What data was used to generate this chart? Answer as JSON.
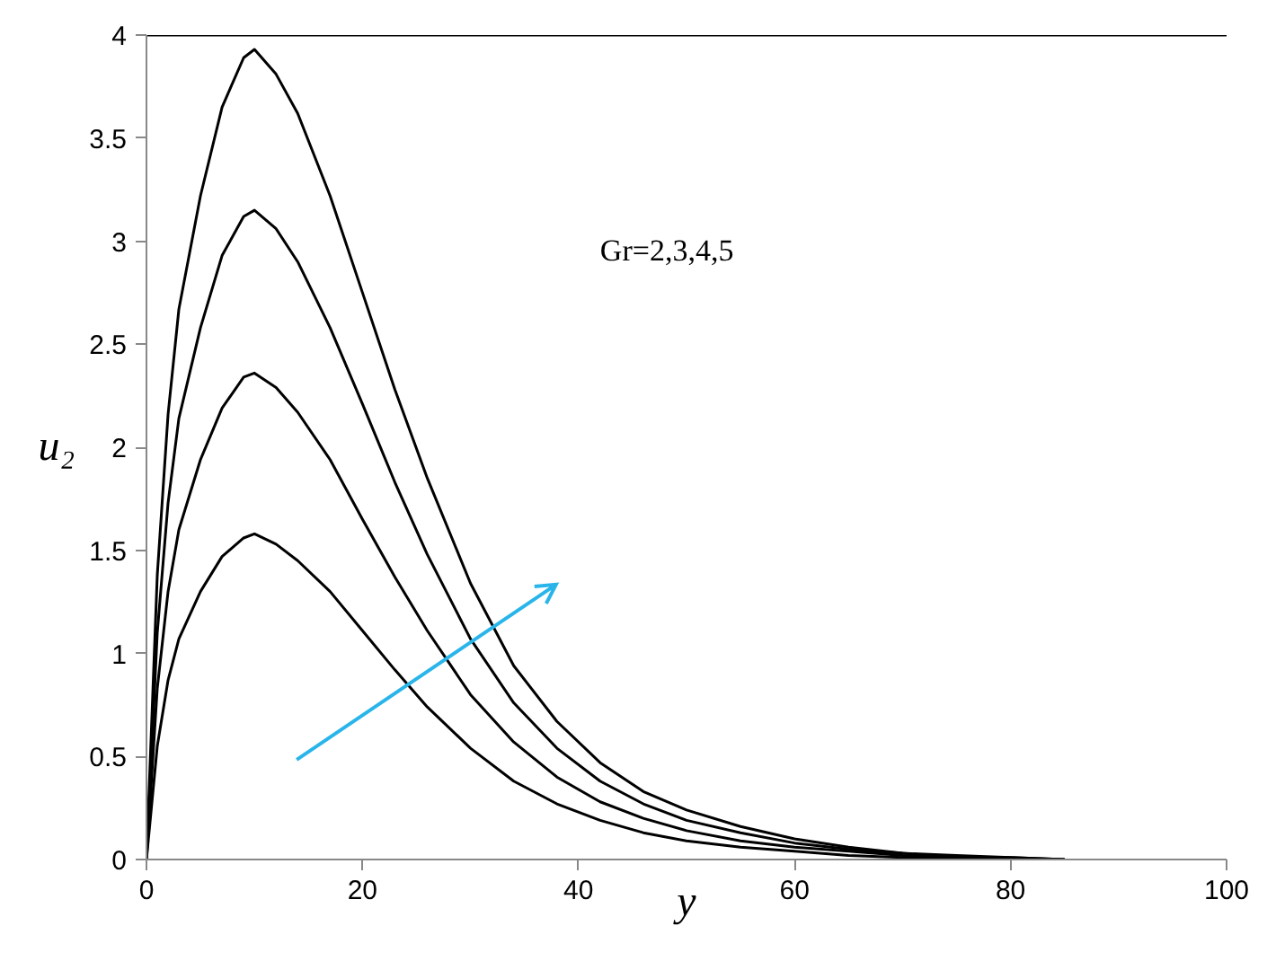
{
  "chart_data": {
    "type": "line",
    "xlabel": "y",
    "ylabel": "u₂",
    "annotations": [
      "Gr=2,3,4,5"
    ],
    "x": [
      0,
      1,
      2,
      3,
      5,
      7,
      9,
      10,
      12,
      14,
      17,
      20,
      23,
      26,
      30,
      34,
      38,
      42,
      46,
      50,
      55,
      60,
      65,
      70,
      75,
      80,
      85
    ],
    "series": [
      {
        "color": "#000000",
        "values": [
          0,
          0.55,
          0.87,
          1.07,
          1.3,
          1.47,
          1.56,
          1.58,
          1.53,
          1.45,
          1.3,
          1.11,
          0.92,
          0.74,
          0.54,
          0.38,
          0.27,
          0.19,
          0.13,
          0.09,
          0.06,
          0.04,
          0.02,
          0.01,
          0.01,
          0,
          0
        ]
      },
      {
        "color": "#000000",
        "values": [
          0,
          0.83,
          1.3,
          1.6,
          1.94,
          2.19,
          2.34,
          2.36,
          2.29,
          2.17,
          1.94,
          1.65,
          1.37,
          1.11,
          0.8,
          0.57,
          0.4,
          0.28,
          0.2,
          0.14,
          0.09,
          0.06,
          0.04,
          0.02,
          0.01,
          0,
          0
        ]
      },
      {
        "color": "#000000",
        "values": [
          0,
          1.1,
          1.73,
          2.14,
          2.58,
          2.93,
          3.12,
          3.15,
          3.06,
          2.9,
          2.58,
          2.21,
          1.83,
          1.48,
          1.07,
          0.76,
          0.54,
          0.38,
          0.27,
          0.19,
          0.13,
          0.08,
          0.05,
          0.03,
          0.01,
          0.01,
          0
        ]
      },
      {
        "color": "#000000",
        "values": [
          0,
          1.38,
          2.16,
          2.67,
          3.22,
          3.65,
          3.89,
          3.93,
          3.81,
          3.62,
          3.22,
          2.75,
          2.28,
          1.85,
          1.34,
          0.94,
          0.67,
          0.47,
          0.33,
          0.24,
          0.16,
          0.1,
          0.06,
          0.03,
          0.02,
          0.01,
          0
        ]
      }
    ],
    "xlim": [
      0,
      100
    ],
    "xticks": [
      0,
      20,
      40,
      60,
      80,
      100
    ],
    "ylim": [
      0,
      4
    ],
    "yticks": [
      0,
      0.5,
      1,
      1.5,
      2,
      2.5,
      3,
      3.5,
      4
    ],
    "grid": false,
    "marker": "none",
    "line_style": "solid"
  }
}
